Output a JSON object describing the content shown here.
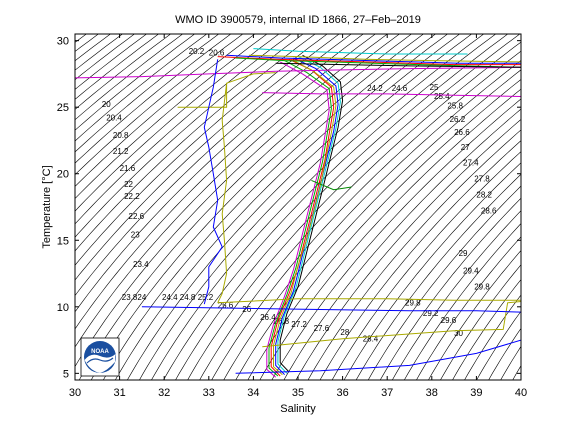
{
  "chart_data": {
    "type": "line",
    "title": "WMO ID 3900579, internal ID 1866, 27–Feb–2019",
    "xlabel": "Salinity",
    "ylabel": "Temperature [°C]",
    "xlim": [
      30,
      40
    ],
    "ylim": [
      4.5,
      30.5
    ],
    "xticks": [
      "30",
      "31",
      "32",
      "33",
      "34",
      "35",
      "36",
      "37",
      "38",
      "39",
      "40"
    ],
    "yticks": [
      "5",
      "10",
      "15",
      "20",
      "25",
      "30"
    ],
    "grid": false,
    "logo": "NOAA",
    "density_contour_labels": [
      {
        "text": "20.2",
        "s": 32.55,
        "t": 29.0
      },
      {
        "text": "20.6",
        "s": 33.0,
        "t": 28.9
      },
      {
        "text": "20",
        "s": 30.6,
        "t": 25.0
      },
      {
        "text": "20.4",
        "s": 30.7,
        "t": 24.0
      },
      {
        "text": "20.8",
        "s": 30.85,
        "t": 22.7
      },
      {
        "text": "21.2",
        "s": 30.85,
        "t": 21.5
      },
      {
        "text": "21.6",
        "s": 31.0,
        "t": 20.2
      },
      {
        "text": "22",
        "s": 31.1,
        "t": 19.0
      },
      {
        "text": "22.2",
        "s": 31.1,
        "t": 18.1
      },
      {
        "text": "22.6",
        "s": 31.2,
        "t": 16.6
      },
      {
        "text": "23",
        "s": 31.25,
        "t": 15.2
      },
      {
        "text": "23.4",
        "s": 31.3,
        "t": 13.0
      },
      {
        "text": "23.8",
        "s": 31.05,
        "t": 10.5
      },
      {
        "text": "24",
        "s": 31.4,
        "t": 10.5
      },
      {
        "text": "24.4",
        "s": 31.95,
        "t": 10.5
      },
      {
        "text": "24.8",
        "s": 32.35,
        "t": 10.5
      },
      {
        "text": "25.2",
        "s": 32.75,
        "t": 10.5
      },
      {
        "text": "25.6",
        "s": 33.2,
        "t": 9.9
      },
      {
        "text": "26",
        "s": 33.75,
        "t": 9.6
      },
      {
        "text": "26.4",
        "s": 34.15,
        "t": 9.0
      },
      {
        "text": "26.8",
        "s": 34.45,
        "t": 8.7
      },
      {
        "text": "27.2",
        "s": 34.85,
        "t": 8.5
      },
      {
        "text": "27.6",
        "s": 35.35,
        "t": 8.2
      },
      {
        "text": "28",
        "s": 35.95,
        "t": 7.9
      },
      {
        "text": "28.4",
        "s": 36.45,
        "t": 7.4
      },
      {
        "text": "24.2",
        "s": 36.55,
        "t": 26.2
      },
      {
        "text": "24.6",
        "s": 37.1,
        "t": 26.2
      },
      {
        "text": "25",
        "s": 37.95,
        "t": 26.3
      },
      {
        "text": "25.4",
        "s": 38.05,
        "t": 25.6
      },
      {
        "text": "25.8",
        "s": 38.35,
        "t": 24.9
      },
      {
        "text": "26.2",
        "s": 38.4,
        "t": 23.9
      },
      {
        "text": "26.6",
        "s": 38.5,
        "t": 22.9
      },
      {
        "text": "27",
        "s": 38.65,
        "t": 21.8
      },
      {
        "text": "27.4",
        "s": 38.7,
        "t": 20.6
      },
      {
        "text": "27.8",
        "s": 38.95,
        "t": 19.4
      },
      {
        "text": "28.2",
        "s": 39.0,
        "t": 18.2
      },
      {
        "text": "28.6",
        "s": 39.1,
        "t": 17.0
      },
      {
        "text": "29",
        "s": 38.6,
        "t": 13.8
      },
      {
        "text": "29.4",
        "s": 38.7,
        "t": 12.5
      },
      {
        "text": "29.8",
        "s": 38.95,
        "t": 11.3
      },
      {
        "text": "29.8",
        "s": 37.4,
        "t": 10.1
      },
      {
        "text": "29.2",
        "s": 37.8,
        "t": 9.3
      },
      {
        "text": "29.6",
        "s": 38.2,
        "t": 8.8
      },
      {
        "text": "30",
        "s": 38.5,
        "t": 7.8
      }
    ],
    "series": [
      {
        "color": "#ff0000",
        "points": [
          [
            34.6,
            4.8
          ],
          [
            34.4,
            5.5
          ],
          [
            34.4,
            7
          ],
          [
            34.55,
            9
          ],
          [
            34.8,
            11
          ],
          [
            35.0,
            13
          ],
          [
            35.15,
            15
          ],
          [
            35.3,
            17
          ],
          [
            35.45,
            19
          ],
          [
            35.6,
            21
          ],
          [
            35.7,
            23
          ],
          [
            35.8,
            25
          ],
          [
            35.75,
            26.5
          ],
          [
            35.3,
            27.8
          ],
          [
            34.8,
            28.6
          ]
        ]
      },
      {
        "color": "#0000ff",
        "points": [
          [
            34.7,
            4.9
          ],
          [
            34.5,
            5.6
          ],
          [
            34.5,
            7.2
          ],
          [
            34.65,
            9.2
          ],
          [
            34.9,
            11.2
          ],
          [
            35.05,
            13.2
          ],
          [
            35.2,
            15.2
          ],
          [
            35.35,
            17.2
          ],
          [
            35.5,
            19.2
          ],
          [
            35.65,
            21.2
          ],
          [
            35.8,
            23.2
          ],
          [
            35.9,
            25.2
          ],
          [
            35.85,
            26.6
          ],
          [
            35.4,
            27.9
          ],
          [
            34.9,
            28.7
          ]
        ]
      },
      {
        "color": "#00aa00",
        "points": [
          [
            34.55,
            4.8
          ],
          [
            34.35,
            5.4
          ],
          [
            34.35,
            6.9
          ],
          [
            34.5,
            8.8
          ],
          [
            34.75,
            10.9
          ],
          [
            34.95,
            12.9
          ],
          [
            35.1,
            14.9
          ],
          [
            35.25,
            16.9
          ],
          [
            35.4,
            18.9
          ],
          [
            35.55,
            20.9
          ],
          [
            35.65,
            22.9
          ],
          [
            35.75,
            24.9
          ],
          [
            35.7,
            26.4
          ],
          [
            35.2,
            27.6
          ],
          [
            34.7,
            28.5
          ]
        ]
      },
      {
        "color": "#00cccc",
        "points": [
          [
            34.75,
            5.0
          ],
          [
            34.55,
            5.7
          ],
          [
            34.55,
            7.4
          ],
          [
            34.7,
            9.4
          ],
          [
            34.95,
            11.4
          ],
          [
            35.1,
            13.4
          ],
          [
            35.25,
            15.4
          ],
          [
            35.4,
            17.4
          ],
          [
            35.55,
            19.4
          ],
          [
            35.7,
            21.4
          ],
          [
            35.85,
            23.4
          ],
          [
            35.95,
            25.4
          ],
          [
            35.9,
            26.8
          ],
          [
            35.5,
            28.0
          ],
          [
            35.0,
            28.8
          ]
        ]
      },
      {
        "color": "#cc00cc",
        "points": [
          [
            34.5,
            4.7
          ],
          [
            34.3,
            5.3
          ],
          [
            34.3,
            6.8
          ],
          [
            34.45,
            8.7
          ],
          [
            34.7,
            10.8
          ],
          [
            34.9,
            12.8
          ],
          [
            35.05,
            14.8
          ],
          [
            35.2,
            16.8
          ],
          [
            35.35,
            18.8
          ],
          [
            35.5,
            20.8
          ],
          [
            35.6,
            22.8
          ],
          [
            35.7,
            24.8
          ],
          [
            35.65,
            26.3
          ],
          [
            35.1,
            27.5
          ],
          [
            34.6,
            28.4
          ]
        ]
      },
      {
        "color": "#aaaa00",
        "points": [
          [
            34.65,
            4.9
          ],
          [
            34.45,
            5.5
          ],
          [
            34.45,
            7.1
          ],
          [
            34.6,
            9.1
          ],
          [
            34.85,
            11.1
          ],
          [
            35.0,
            13.1
          ],
          [
            35.2,
            15.1
          ],
          [
            35.35,
            17.1
          ],
          [
            35.5,
            19.1
          ],
          [
            35.62,
            21.1
          ],
          [
            35.75,
            23.1
          ],
          [
            35.85,
            25.1
          ],
          [
            35.8,
            26.5
          ],
          [
            35.35,
            27.7
          ],
          [
            34.85,
            28.6
          ]
        ]
      },
      {
        "color": "#000000",
        "points": [
          [
            34.8,
            5.1
          ],
          [
            34.6,
            5.8
          ],
          [
            34.6,
            7.5
          ],
          [
            34.75,
            9.5
          ],
          [
            35.0,
            11.5
          ],
          [
            35.15,
            13.5
          ],
          [
            35.3,
            15.5
          ],
          [
            35.45,
            17.5
          ],
          [
            35.6,
            19.5
          ],
          [
            35.75,
            21.5
          ],
          [
            35.9,
            23.5
          ],
          [
            36.0,
            25.5
          ],
          [
            35.95,
            26.9
          ],
          [
            35.55,
            28.1
          ],
          [
            35.1,
            28.9
          ]
        ]
      },
      {
        "color": "#ff0000",
        "points": [
          [
            33.2,
            28.8
          ],
          [
            34.5,
            28.6
          ],
          [
            35.5,
            28.5
          ],
          [
            36.5,
            28.4
          ],
          [
            37.5,
            28.3
          ],
          [
            38.5,
            28.2
          ],
          [
            40,
            28.2
          ]
        ]
      },
      {
        "color": "#0000ff",
        "points": [
          [
            33.4,
            28.9
          ],
          [
            34.6,
            28.7
          ],
          [
            35.6,
            28.6
          ],
          [
            36.6,
            28.5
          ],
          [
            37.6,
            28.4
          ],
          [
            38.6,
            28.3
          ],
          [
            40,
            28.3
          ]
        ]
      },
      {
        "color": "#00aa00",
        "points": [
          [
            33.6,
            28.7
          ],
          [
            34.7,
            28.5
          ],
          [
            35.7,
            28.4
          ],
          [
            36.7,
            28.3
          ],
          [
            37.7,
            28.2
          ],
          [
            38.7,
            28.1
          ],
          [
            40,
            28.0
          ]
        ]
      },
      {
        "color": "#00cccc",
        "points": [
          [
            34.0,
            29.4
          ],
          [
            35.0,
            29.2
          ],
          [
            36.0,
            29.1
          ],
          [
            37.0,
            29.0
          ],
          [
            38.0,
            29.0
          ],
          [
            38.8,
            29.0
          ]
        ]
      },
      {
        "color": "#cc00cc",
        "points": [
          [
            30,
            27.2
          ],
          [
            31.5,
            27.3
          ],
          [
            33,
            27.5
          ],
          [
            34.5,
            27.7
          ],
          [
            36,
            27.8
          ],
          [
            37.5,
            27.9
          ],
          [
            40,
            28.0
          ]
        ]
      },
      {
        "color": "#cc00cc",
        "points": [
          [
            34.2,
            26.1
          ],
          [
            35.5,
            26.0
          ],
          [
            37,
            26.0
          ],
          [
            38.5,
            25.9
          ],
          [
            40,
            25.8
          ]
        ]
      },
      {
        "color": "#aaaa00",
        "points": [
          [
            33.9,
            28.9
          ],
          [
            35,
            28.8
          ],
          [
            36.5,
            28.6
          ],
          [
            38,
            28.5
          ],
          [
            40,
            28.4
          ]
        ]
      },
      {
        "color": "#000000",
        "points": [
          [
            34.5,
            28.3
          ],
          [
            36,
            28.2
          ],
          [
            37.5,
            28.1
          ],
          [
            40,
            28.0
          ]
        ]
      },
      {
        "color": "#aaaa00",
        "points": [
          [
            32.3,
            25.0
          ],
          [
            33.4,
            25.0
          ],
          [
            33.4,
            26.8
          ],
          [
            34.0,
            27.5
          ],
          [
            34.5,
            27.6
          ]
        ]
      },
      {
        "color": "#aaaa00",
        "points": [
          [
            33.4,
            26.8
          ],
          [
            33.3,
            24.0
          ],
          [
            33.35,
            22.0
          ],
          [
            33.4,
            19.5
          ],
          [
            33.3,
            17.0
          ],
          [
            33.35,
            15.0
          ],
          [
            33.4,
            12.5
          ],
          [
            33.3,
            11.0
          ],
          [
            33.2,
            10.3
          ]
        ]
      },
      {
        "color": "#aaaa00",
        "points": [
          [
            33.2,
            10.3
          ],
          [
            35.0,
            10.6
          ],
          [
            37.0,
            10.6
          ],
          [
            38.5,
            10.5
          ],
          [
            40,
            10.5
          ]
        ]
      },
      {
        "color": "#aaaa00",
        "points": [
          [
            34.2,
            7.0
          ],
          [
            36.0,
            7.6
          ],
          [
            38.5,
            8.2
          ],
          [
            39.6,
            8.3
          ],
          [
            39.7,
            10.3
          ],
          [
            40,
            10.4
          ]
        ]
      },
      {
        "color": "#0000ff",
        "points": [
          [
            33.2,
            28.6
          ],
          [
            33.1,
            26.5
          ],
          [
            33.0,
            25.0
          ],
          [
            32.9,
            23.5
          ],
          [
            33.0,
            22.0
          ],
          [
            33.1,
            20.0
          ],
          [
            33.2,
            18.0
          ],
          [
            33.1,
            16.0
          ],
          [
            33.3,
            14.5
          ],
          [
            33.0,
            13.0
          ],
          [
            33.0,
            11.5
          ],
          [
            32.9,
            10.2
          ]
        ]
      },
      {
        "color": "#0000ff",
        "points": [
          [
            31.5,
            10.0
          ],
          [
            33.5,
            9.9
          ],
          [
            35.5,
            9.8
          ],
          [
            37.5,
            9.7
          ],
          [
            39.0,
            9.7
          ],
          [
            40,
            9.6
          ]
        ]
      },
      {
        "color": "#0000ff",
        "points": [
          [
            33.6,
            5.0
          ],
          [
            35.5,
            5.2
          ],
          [
            37.5,
            5.6
          ],
          [
            39.0,
            6.5
          ],
          [
            40,
            7.5
          ]
        ]
      },
      {
        "color": "#008800",
        "points": [
          [
            35.3,
            19.5
          ],
          [
            35.8,
            18.8
          ],
          [
            36.2,
            19.0
          ]
        ]
      }
    ]
  }
}
